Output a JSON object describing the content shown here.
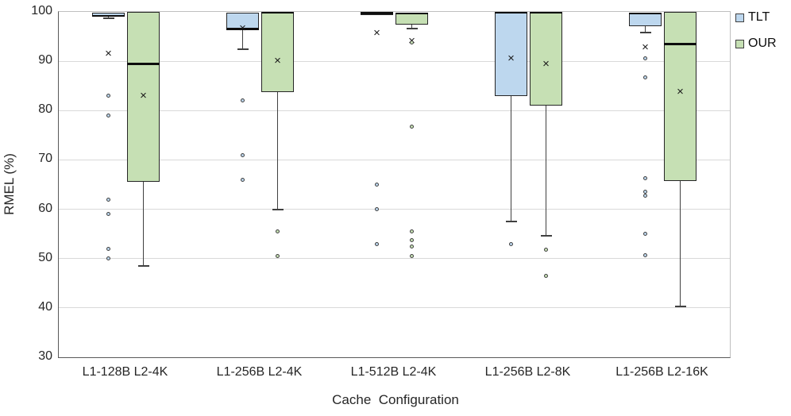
{
  "chart_data": {
    "type": "boxplot",
    "title": "",
    "xlabel": "Cache  Configuration",
    "ylabel": "RMEL (%)",
    "ylim": [
      30,
      100
    ],
    "yticks": [
      30,
      40,
      50,
      60,
      70,
      80,
      90,
      100
    ],
    "grid": true,
    "legend_position": "top-right-outside",
    "categories": [
      "L1-128B L2-4K",
      "L1-256B L2-4K",
      "L1-512B L2-4K",
      "L1-256B L2-8K",
      "L1-256B L2-16K"
    ],
    "series": [
      {
        "name": "TLT",
        "fill": "#BDD7EE",
        "boxes": [
          {
            "q1": 99.1,
            "q3": 99.9,
            "median": 99.2,
            "whisker_low": 98.7,
            "whisker_high": null,
            "mean": 91.5,
            "outliers": [
              83,
              79,
              62,
              59,
              52,
              50
            ]
          },
          {
            "q1": 96.6,
            "q3": 99.8,
            "median": 96.6,
            "whisker_low": 92.4,
            "whisker_high": null,
            "mean": 96.7,
            "outliers": [
              82,
              71,
              66
            ]
          },
          {
            "q1": 99.7,
            "q3": 99.9,
            "median": 99.8,
            "whisker_low": null,
            "whisker_high": null,
            "mean": 95.7,
            "outliers": [
              65,
              60,
              53
            ]
          },
          {
            "q1": 83.0,
            "q3": 100.0,
            "median": 99.9,
            "whisker_low": 57.5,
            "whisker_high": null,
            "mean": 90.5,
            "outliers": [
              53
            ]
          },
          {
            "q1": 97.1,
            "q3": 99.8,
            "median": 99.7,
            "whisker_low": 95.8,
            "whisker_high": null,
            "mean": 92.8,
            "outliers": [
              90.6,
              86.8,
              66.3,
              63.5,
              62.8,
              55,
              50.7
            ]
          }
        ]
      },
      {
        "name": "OUR",
        "fill": "#C6E0B4",
        "boxes": [
          {
            "q1": 65.5,
            "q3": 100.0,
            "median": 89.5,
            "whisker_low": 48.5,
            "whisker_high": null,
            "mean": 83.0,
            "outliers": []
          },
          {
            "q1": 83.7,
            "q3": 100.0,
            "median": 99.9,
            "whisker_low": 60.0,
            "whisker_high": null,
            "mean": 90.0,
            "outliers": [
              55.5,
              50.5
            ]
          },
          {
            "q1": 97.4,
            "q3": 99.8,
            "median": 99.7,
            "whisker_low": 96.6,
            "whisker_high": null,
            "mean": 94.1,
            "outliers": [
              93.8,
              76.7,
              55.5,
              53.8,
              52.4,
              50.5
            ]
          },
          {
            "q1": 81.0,
            "q3": 100.0,
            "median": 99.9,
            "whisker_low": 54.7,
            "whisker_high": null,
            "mean": 89.3,
            "outliers": [
              51.8,
              46.5
            ]
          },
          {
            "q1": 65.7,
            "q3": 100.0,
            "median": 93.5,
            "whisker_low": 40.3,
            "whisker_high": null,
            "mean": 83.7,
            "outliers": []
          }
        ]
      }
    ]
  }
}
